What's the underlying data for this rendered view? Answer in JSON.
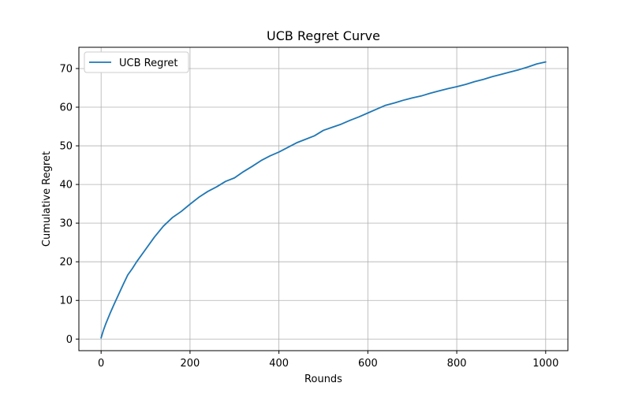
{
  "chart_data": {
    "type": "line",
    "title": "UCB Regret Curve",
    "xlabel": "Rounds",
    "ylabel": "Cumulative Regret",
    "xlim": [
      -50,
      1050
    ],
    "ylim": [
      -3,
      75.5
    ],
    "xticks": [
      0,
      200,
      400,
      600,
      800,
      1000
    ],
    "yticks": [
      0,
      10,
      20,
      30,
      40,
      50,
      60,
      70
    ],
    "grid": true,
    "legend_position": "top-left",
    "series": [
      {
        "name": "UCB Regret",
        "color": "#1f77b4",
        "x": [
          0,
          5,
          10,
          20,
          30,
          40,
          50,
          60,
          70,
          80,
          100,
          120,
          140,
          160,
          180,
          200,
          220,
          240,
          260,
          280,
          300,
          320,
          340,
          360,
          380,
          400,
          420,
          440,
          460,
          480,
          500,
          520,
          540,
          560,
          580,
          600,
          620,
          640,
          660,
          680,
          700,
          720,
          740,
          760,
          780,
          800,
          820,
          840,
          860,
          880,
          900,
          920,
          940,
          960,
          980,
          1000
        ],
        "y": [
          0.3,
          2.2,
          3.8,
          6.6,
          9.2,
          11.7,
          14.2,
          16.6,
          18.2,
          20.0,
          23.2,
          26.4,
          29.2,
          31.4,
          33.0,
          34.9,
          36.7,
          38.2,
          39.4,
          40.8,
          41.7,
          43.3,
          44.7,
          46.2,
          47.4,
          48.4,
          49.6,
          50.8,
          51.7,
          52.6,
          54.0,
          54.8,
          55.6,
          56.6,
          57.5,
          58.5,
          59.5,
          60.5,
          61.1,
          61.8,
          62.4,
          62.9,
          63.6,
          64.2,
          64.8,
          65.3,
          65.9,
          66.6,
          67.2,
          67.9,
          68.5,
          69.1,
          69.7,
          70.4,
          71.2,
          71.7
        ]
      }
    ]
  }
}
